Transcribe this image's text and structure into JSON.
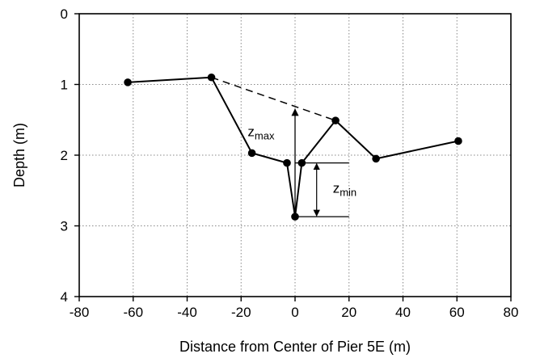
{
  "chart_data": {
    "type": "line",
    "xlabel": "Distance from Center of Pier 5E (m)",
    "ylabel": "Depth (m)",
    "xlim": [
      -80,
      80
    ],
    "ylim": [
      0,
      4
    ],
    "y_inverted": true,
    "x_ticks": [
      -80,
      -60,
      -40,
      -20,
      0,
      20,
      40,
      60,
      80
    ],
    "y_ticks": [
      0,
      1,
      2,
      3,
      4
    ],
    "x_tick_labels": [
      "-80",
      "-60",
      "-40",
      "-20",
      "0",
      "20",
      "40",
      "60",
      "80"
    ],
    "y_tick_labels": [
      "0",
      "1",
      "2",
      "3",
      "4"
    ],
    "grid": "dotted",
    "series": [
      {
        "x": [
          -62,
          -31,
          -16,
          -3,
          0,
          2.5,
          15,
          30,
          60.5
        ],
        "y": [
          0.97,
          0.9,
          1.97,
          2.11,
          2.87,
          2.11,
          1.51,
          2.05,
          1.8
        ],
        "style": "solid",
        "marker": "circle"
      }
    ],
    "dashed_line": {
      "x": [
        -31,
        15
      ],
      "y": [
        0.9,
        1.51
      ]
    },
    "annotations": {
      "zmax": {
        "label": "z",
        "sub": "max",
        "x": 0,
        "y_from": 2.87,
        "y_to": 1.35,
        "label_x": -12,
        "label_y": 1.73
      },
      "zmin": {
        "label": "z",
        "sub": "min",
        "x": 8,
        "y_from": 2.11,
        "y_to": 2.87,
        "tick_x_range": [
          0,
          20
        ],
        "label_x": 14,
        "label_y": 2.53
      }
    },
    "colors": {
      "line": "#000000",
      "grid": "#888888"
    }
  }
}
